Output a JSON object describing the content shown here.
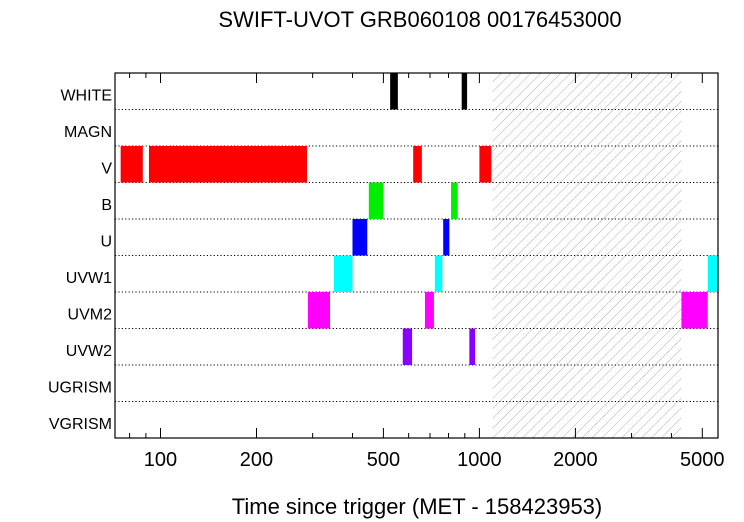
{
  "chart_data": {
    "type": "timeline",
    "title": "SWIFT-UVOT GRB060108 00176453000",
    "xlabel": "Time since trigger (MET - 158423953)",
    "x_scale": "log",
    "xlim": [
      72,
      5600
    ],
    "x_ticks": [
      {
        "value": 100,
        "label": "100"
      },
      {
        "value": 200,
        "label": "200"
      },
      {
        "value": 500,
        "label": "500"
      },
      {
        "value": 1000,
        "label": "1000"
      },
      {
        "value": 2000,
        "label": "2000"
      },
      {
        "value": 5000,
        "label": "5000"
      }
    ],
    "rows": [
      "WHITE",
      "MAGN",
      "V",
      "B",
      "U",
      "UVW1",
      "UVM2",
      "UVW2",
      "UGRISM",
      "VGRISM"
    ],
    "shaded_interval": {
      "start": 1100,
      "end": 4300,
      "pattern": "hatched"
    },
    "colors": {
      "WHITE": "#000000",
      "MAGN": "#000000",
      "V": "#ff0000",
      "B": "#00ee00",
      "U": "#0000ff",
      "UVW1": "#00ffff",
      "UVM2": "#ff00ff",
      "UVW2": "#8800ff",
      "UGRISM": "#000000",
      "VGRISM": "#000000"
    },
    "exposures": [
      {
        "row": "WHITE",
        "start": 525,
        "end": 555
      },
      {
        "row": "WHITE",
        "start": 880,
        "end": 915
      },
      {
        "row": "V",
        "start": 75,
        "end": 88
      },
      {
        "row": "V",
        "start": 92,
        "end": 288
      },
      {
        "row": "V",
        "start": 620,
        "end": 660
      },
      {
        "row": "V",
        "start": 1000,
        "end": 1090
      },
      {
        "row": "B",
        "start": 450,
        "end": 500
      },
      {
        "row": "B",
        "start": 815,
        "end": 855
      },
      {
        "row": "U",
        "start": 400,
        "end": 445
      },
      {
        "row": "U",
        "start": 770,
        "end": 805
      },
      {
        "row": "UVW1",
        "start": 350,
        "end": 400
      },
      {
        "row": "UVW1",
        "start": 725,
        "end": 765
      },
      {
        "row": "UVW1",
        "start": 5200,
        "end": 5600
      },
      {
        "row": "UVM2",
        "start": 290,
        "end": 340
      },
      {
        "row": "UVM2",
        "start": 675,
        "end": 720
      },
      {
        "row": "UVM2",
        "start": 4300,
        "end": 5200
      },
      {
        "row": "UVW2",
        "start": 575,
        "end": 615
      },
      {
        "row": "UVW2",
        "start": 930,
        "end": 970
      }
    ]
  }
}
